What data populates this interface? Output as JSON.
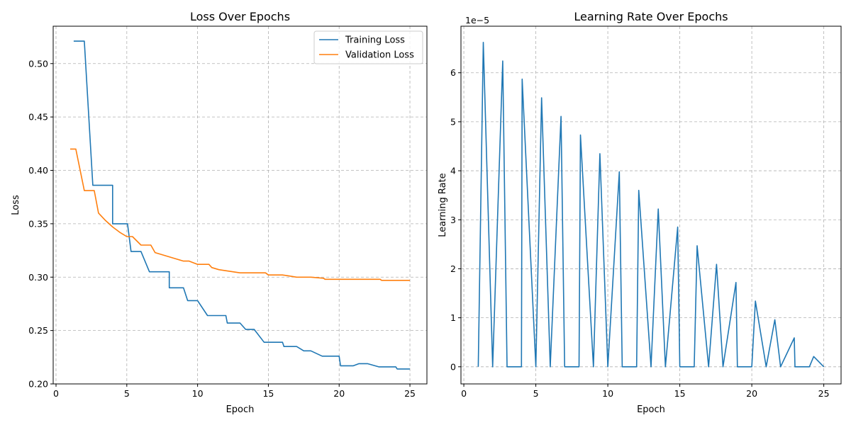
{
  "chart_data": [
    {
      "type": "line",
      "title": "Loss Over Epochs",
      "xlabel": "Epoch",
      "ylabel": "Loss",
      "xlim": [
        -0.2,
        26.2
      ],
      "ylim": [
        0.2,
        0.535
      ],
      "xticks": [
        0,
        5,
        10,
        15,
        20,
        25
      ],
      "yticks": [
        0.2,
        0.25,
        0.3,
        0.35,
        0.4,
        0.45,
        0.5
      ],
      "xtick_labels": [
        "0",
        "5",
        "10",
        "15",
        "20",
        "25"
      ],
      "ytick_labels": [
        "0.20",
        "0.25",
        "0.30",
        "0.35",
        "0.40",
        "0.45",
        "0.50"
      ],
      "grid": true,
      "legend_position": "top-right",
      "series": [
        {
          "name": "Training Loss",
          "color": "#1f77b4",
          "x": [
            1.25,
            1.4,
            1.8,
            2.0,
            2.6,
            2.7,
            3.0,
            3.4,
            3.8,
            4.0,
            4.0,
            4.5,
            5.0,
            5.05,
            5.3,
            5.6,
            6.0,
            6.6,
            6.7,
            7.0,
            7.5,
            7.9,
            8.0,
            8.0,
            8.5,
            9.0,
            9.3,
            9.6,
            10.0,
            10.7,
            11.0,
            11.5,
            12.0,
            12.1,
            12.5,
            13.0,
            13.4,
            13.6,
            14.0,
            14.7,
            15.0,
            15.5,
            16.0,
            16.1,
            16.5,
            17.0,
            17.5,
            17.6,
            18.0,
            18.8,
            19.0,
            19.5,
            20.0,
            20.1,
            20.5,
            21.0,
            21.4,
            21.6,
            22.0,
            22.8,
            23.0,
            23.5,
            24.0,
            24.1,
            24.5,
            25.0
          ],
          "y": [
            0.521,
            0.521,
            0.521,
            0.521,
            0.386,
            0.386,
            0.386,
            0.386,
            0.386,
            0.386,
            0.35,
            0.35,
            0.35,
            0.35,
            0.324,
            0.324,
            0.324,
            0.305,
            0.305,
            0.305,
            0.305,
            0.305,
            0.305,
            0.29,
            0.29,
            0.29,
            0.278,
            0.278,
            0.278,
            0.264,
            0.264,
            0.264,
            0.264,
            0.257,
            0.257,
            0.257,
            0.251,
            0.251,
            0.251,
            0.239,
            0.239,
            0.239,
            0.239,
            0.235,
            0.235,
            0.235,
            0.231,
            0.231,
            0.231,
            0.226,
            0.226,
            0.226,
            0.226,
            0.217,
            0.217,
            0.217,
            0.219,
            0.219,
            0.219,
            0.216,
            0.216,
            0.216,
            0.216,
            0.214,
            0.214,
            0.214
          ]
        },
        {
          "name": "Validation Loss",
          "color": "#ff7f0e",
          "x": [
            1.0,
            1.4,
            2.0,
            2.7,
            3.0,
            3.5,
            4.0,
            4.5,
            5.0,
            5.4,
            6.0,
            6.7,
            7.0,
            7.5,
            8.0,
            8.5,
            9.0,
            9.4,
            10.0,
            10.8,
            11.0,
            11.5,
            12.0,
            12.5,
            13.0,
            13.5,
            14.0,
            14.8,
            15.0,
            15.5,
            16.0,
            16.5,
            17.0,
            17.5,
            18.0,
            18.9,
            19.0,
            19.5,
            20.0,
            20.5,
            21.0,
            21.6,
            22.0,
            22.9,
            23.0,
            23.5,
            24.0,
            24.5,
            25.0
          ],
          "y": [
            0.42,
            0.42,
            0.381,
            0.381,
            0.36,
            0.353,
            0.347,
            0.342,
            0.338,
            0.338,
            0.33,
            0.33,
            0.323,
            0.321,
            0.319,
            0.317,
            0.315,
            0.315,
            0.312,
            0.312,
            0.309,
            0.307,
            0.306,
            0.305,
            0.304,
            0.304,
            0.304,
            0.304,
            0.302,
            0.302,
            0.302,
            0.301,
            0.3,
            0.3,
            0.3,
            0.299,
            0.298,
            0.298,
            0.298,
            0.298,
            0.298,
            0.298,
            0.298,
            0.298,
            0.297,
            0.297,
            0.297,
            0.297,
            0.297
          ]
        }
      ]
    },
    {
      "type": "line",
      "title": "Learning Rate Over Epochs",
      "xlabel": "Epoch",
      "ylabel": "Learning Rate",
      "scale_label": "1e−5",
      "xlim": [
        -0.2,
        26.2
      ],
      "ylim": [
        -0.35,
        6.95
      ],
      "xticks": [
        0,
        5,
        10,
        15,
        20,
        25
      ],
      "yticks": [
        0,
        1,
        2,
        3,
        4,
        5,
        6
      ],
      "xtick_labels": [
        "0",
        "5",
        "10",
        "15",
        "20",
        "25"
      ],
      "ytick_labels": [
        "0",
        "1",
        "2",
        "3",
        "4",
        "5",
        "6"
      ],
      "grid": true,
      "series": [
        {
          "color": "#1f77b4",
          "x": [
            1.0,
            1.35,
            2.0,
            2.7,
            3.0,
            4.0,
            4.05,
            5.0,
            5.4,
            6.0,
            6.75,
            7.0,
            8.0,
            8.1,
            9.0,
            9.45,
            10.0,
            10.8,
            11.0,
            12.0,
            12.15,
            13.0,
            13.5,
            14.0,
            14.85,
            15.0,
            16.0,
            16.2,
            17.0,
            17.55,
            18.0,
            18.9,
            19.0,
            20.0,
            20.25,
            21.0,
            21.6,
            22.0,
            22.95,
            23.0,
            24.0,
            24.3,
            25.0
          ],
          "y": [
            0,
            6.62,
            0,
            6.24,
            0,
            0,
            5.87,
            0,
            5.49,
            0,
            5.11,
            0,
            0,
            4.73,
            0,
            4.35,
            0,
            3.98,
            0,
            0,
            3.6,
            0,
            3.22,
            0,
            2.85,
            0,
            0,
            2.47,
            0,
            2.09,
            0,
            1.72,
            0,
            0,
            1.34,
            0,
            0.96,
            0,
            0.59,
            0,
            0,
            0.21,
            0
          ]
        }
      ]
    }
  ]
}
